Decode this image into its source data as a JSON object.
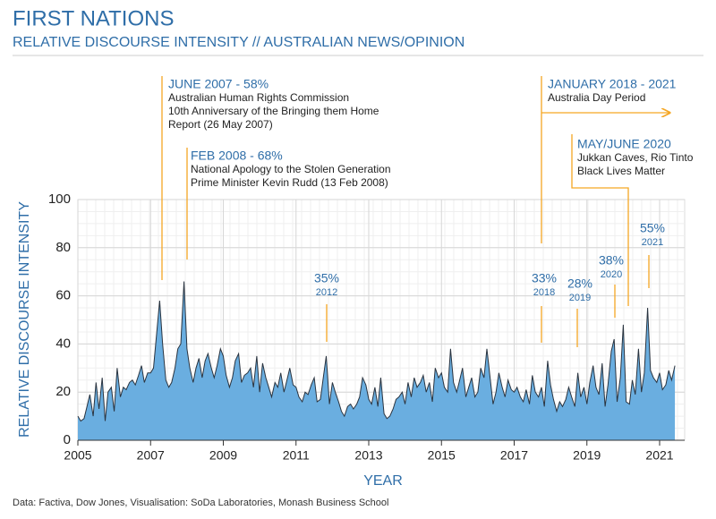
{
  "chart_data": {
    "type": "area",
    "title": "FIRST NATIONS",
    "subtitle": "RELATIVE DISCOURSE INTENSITY // AUSTRALIAN NEWS/OPINION",
    "ylabel": "RELATIVE DISCOURSE INTENSITY",
    "xlabel": "YEAR",
    "source": "Data: Factiva, Dow Jones, Visualisation: SoDa Laboratories, Monash Business School",
    "xlim": [
      2005,
      2021.8
    ],
    "xticks": [
      2005,
      2007,
      2009,
      2011,
      2013,
      2015,
      2017,
      2019,
      2021
    ],
    "ylim": [
      0,
      100
    ],
    "yticks": [
      0,
      20,
      40,
      60,
      80,
      100
    ],
    "grid": true,
    "color": "#6aaee0",
    "annotations": [
      {
        "title": "JUNE 2007 - 58%",
        "lines": [
          "Australian Human Rights Commission",
          "10th Anniversary of the Bringing them Home",
          "Report (26 May 2007)"
        ]
      },
      {
        "title": "FEB 2008 - 68%",
        "lines": [
          "National Apology to the Stolen Generation",
          "Prime Minister Kevin Rudd (13 Feb 2008)"
        ]
      },
      {
        "title": "JANUARY 2018 - 2021",
        "lines": [
          "Australia Day Period"
        ]
      },
      {
        "title": "MAY/JUNE 2020",
        "lines": [
          "Jukkan Caves, Rio Tinto",
          "Black Lives Matter"
        ]
      }
    ],
    "peak_labels": [
      {
        "label": "35%",
        "year": "2012"
      },
      {
        "label": "33%",
        "year": "2018"
      },
      {
        "label": "28%",
        "year": "2019"
      },
      {
        "label": "38%",
        "year": "2020"
      },
      {
        "label": "55%",
        "year": "2021"
      }
    ],
    "x": [
      2005.0,
      2005.08,
      2005.17,
      2005.25,
      2005.33,
      2005.42,
      2005.5,
      2005.58,
      2005.67,
      2005.75,
      2005.83,
      2005.92,
      2006.0,
      2006.08,
      2006.17,
      2006.25,
      2006.33,
      2006.42,
      2006.5,
      2006.58,
      2006.67,
      2006.75,
      2006.83,
      2006.92,
      2007.0,
      2007.08,
      2007.17,
      2007.25,
      2007.33,
      2007.42,
      2007.5,
      2007.58,
      2007.67,
      2007.75,
      2007.83,
      2007.92,
      2008.0,
      2008.08,
      2008.17,
      2008.25,
      2008.33,
      2008.42,
      2008.5,
      2008.58,
      2008.67,
      2008.75,
      2008.83,
      2008.92,
      2009.0,
      2009.08,
      2009.17,
      2009.25,
      2009.33,
      2009.42,
      2009.5,
      2009.58,
      2009.67,
      2009.75,
      2009.83,
      2009.92,
      2010.0,
      2010.08,
      2010.17,
      2010.25,
      2010.33,
      2010.42,
      2010.5,
      2010.58,
      2010.67,
      2010.75,
      2010.83,
      2010.92,
      2011.0,
      2011.08,
      2011.17,
      2011.25,
      2011.33,
      2011.42,
      2011.5,
      2011.58,
      2011.67,
      2011.75,
      2011.83,
      2011.92,
      2012.0,
      2012.08,
      2012.17,
      2012.25,
      2012.33,
      2012.42,
      2012.5,
      2012.58,
      2012.67,
      2012.75,
      2012.83,
      2012.92,
      2013.0,
      2013.08,
      2013.17,
      2013.25,
      2013.33,
      2013.42,
      2013.5,
      2013.58,
      2013.67,
      2013.75,
      2013.83,
      2013.92,
      2014.0,
      2014.08,
      2014.17,
      2014.25,
      2014.33,
      2014.42,
      2014.5,
      2014.58,
      2014.67,
      2014.75,
      2014.83,
      2014.92,
      2015.0,
      2015.08,
      2015.17,
      2015.25,
      2015.33,
      2015.42,
      2015.5,
      2015.58,
      2015.67,
      2015.75,
      2015.83,
      2015.92,
      2016.0,
      2016.08,
      2016.17,
      2016.25,
      2016.33,
      2016.42,
      2016.5,
      2016.58,
      2016.67,
      2016.75,
      2016.83,
      2016.92,
      2017.0,
      2017.08,
      2017.17,
      2017.25,
      2017.33,
      2017.42,
      2017.5,
      2017.58,
      2017.67,
      2017.75,
      2017.83,
      2017.92,
      2018.0,
      2018.08,
      2018.17,
      2018.25,
      2018.33,
      2018.42,
      2018.5,
      2018.58,
      2018.67,
      2018.75,
      2018.83,
      2018.92,
      2019.0,
      2019.08,
      2019.17,
      2019.25,
      2019.33,
      2019.42,
      2019.5,
      2019.58,
      2019.67,
      2019.75,
      2019.83,
      2019.92,
      2020.0,
      2020.08,
      2020.17,
      2020.25,
      2020.33,
      2020.42,
      2020.5,
      2020.58,
      2020.67,
      2020.75,
      2020.83,
      2020.92,
      2021.0,
      2021.08,
      2021.17,
      2021.25,
      2021.33,
      2021.42
    ],
    "values": [
      10,
      8,
      9,
      14,
      19,
      10,
      24,
      13,
      26,
      8,
      20,
      22,
      12,
      30,
      18,
      22,
      21,
      24,
      25,
      23,
      27,
      31,
      24,
      28,
      28,
      30,
      45,
      58,
      40,
      25,
      22,
      24,
      30,
      38,
      40,
      66,
      38,
      30,
      24,
      30,
      34,
      26,
      33,
      36,
      30,
      26,
      31,
      38,
      35,
      27,
      22,
      26,
      33,
      36,
      24,
      27,
      28,
      30,
      22,
      35,
      20,
      32,
      26,
      22,
      18,
      24,
      22,
      28,
      20,
      25,
      30,
      23,
      22,
      18,
      16,
      20,
      19,
      23,
      26,
      16,
      17,
      26,
      35,
      15,
      24,
      20,
      16,
      12,
      10,
      14,
      15,
      13,
      15,
      18,
      26,
      23,
      17,
      15,
      22,
      14,
      26,
      11,
      9,
      10,
      13,
      17,
      18,
      20,
      15,
      24,
      18,
      26,
      22,
      24,
      27,
      20,
      24,
      16,
      30,
      26,
      28,
      22,
      20,
      38,
      24,
      20,
      25,
      30,
      18,
      22,
      26,
      18,
      20,
      30,
      26,
      38,
      27,
      15,
      20,
      28,
      22,
      18,
      25,
      21,
      20,
      22,
      18,
      16,
      21,
      15,
      27,
      20,
      18,
      22,
      14,
      33,
      23,
      17,
      12,
      16,
      14,
      17,
      22,
      18,
      14,
      28,
      18,
      22,
      15,
      24,
      31,
      22,
      19,
      32,
      14,
      23,
      37,
      42,
      16,
      26,
      48,
      16,
      15,
      25,
      19,
      38,
      20,
      28,
      55,
      29,
      26,
      24,
      28,
      21,
      23,
      29,
      25,
      31
    ]
  }
}
